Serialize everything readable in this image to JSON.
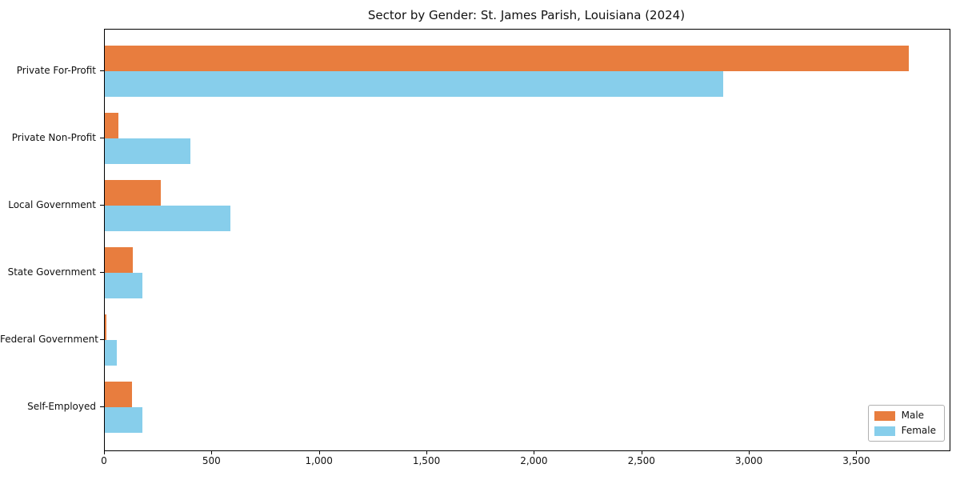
{
  "chart": {
    "title": "Sector by Gender: St. James Parish, Louisiana (2024)",
    "colors": {
      "male": "#e87d3e",
      "female": "#87ceeb",
      "axis": "#000000",
      "background": "#ffffff",
      "legend_border": "#b0b0b0"
    },
    "legend": {
      "position": "lower right",
      "entries": [
        "Male",
        "Female"
      ]
    }
  },
  "chart_data": {
    "type": "bar",
    "orientation": "horizontal",
    "title": "Sector by Gender: St. James Parish, Louisiana (2024)",
    "categories": [
      "Private For-Profit",
      "Private Non-Profit",
      "Local Government",
      "State Government",
      "Federal Government",
      "Self-Employed"
    ],
    "series": [
      {
        "name": "Male",
        "color": "#e87d3e",
        "values": [
          3740,
          65,
          260,
          130,
          6,
          125
        ]
      },
      {
        "name": "Female",
        "color": "#87ceeb",
        "values": [
          2875,
          400,
          585,
          175,
          55,
          175
        ]
      }
    ],
    "xlabel": "",
    "ylabel": "",
    "xlim": [
      0,
      3930
    ],
    "xticks": [
      0,
      500,
      1000,
      1500,
      2000,
      2500,
      3000,
      3500
    ],
    "xtick_labels": [
      "0",
      "500",
      "1,000",
      "1,500",
      "2,000",
      "2,500",
      "3,000",
      "3,500"
    ],
    "grid": false,
    "legend_position": "lower right"
  }
}
